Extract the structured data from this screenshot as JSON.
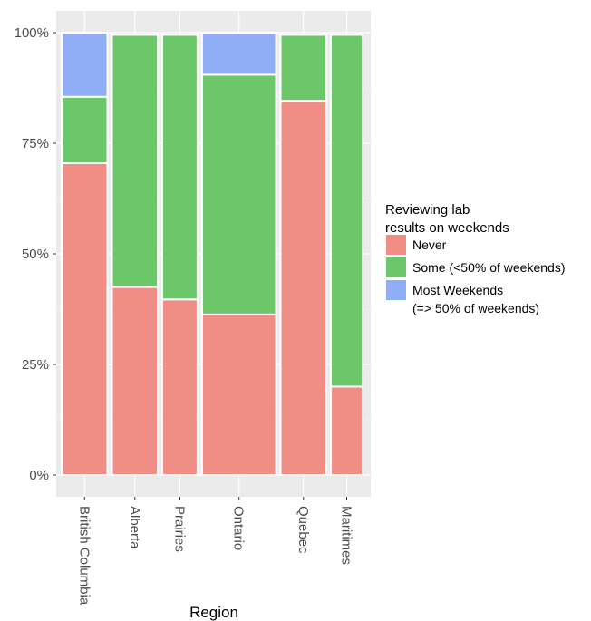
{
  "chart_data": {
    "type": "bar",
    "subtype": "mosaic-stacked-100",
    "xlabel": "Region",
    "ylabel": "",
    "ylim": [
      0,
      100
    ],
    "y_ticks": [
      "0%",
      "25%",
      "50%",
      "75%",
      "100%"
    ],
    "y_tick_values": [
      0,
      25,
      50,
      75,
      100
    ],
    "categories": [
      "British Columbia",
      "Alberta",
      "Prairies",
      "Ontario",
      "Quebec",
      "Maritimes"
    ],
    "category_widths": [
      0.13,
      0.13,
      0.1,
      0.21,
      0.13,
      0.09
    ],
    "series": [
      {
        "name": "Never",
        "color": "#F08D85",
        "values": [
          70.5,
          42.5,
          39.7,
          36.3,
          84.6,
          20.0
        ]
      },
      {
        "name": "Some (<50% of weekends)",
        "color": "#6CC76A",
        "values": [
          15.0,
          57.0,
          59.8,
          54.2,
          14.9,
          79.5
        ]
      },
      {
        "name": "Most Weekends (=> 50% of weekends)",
        "color": "#8FAEF5",
        "values": [
          14.5,
          0,
          0,
          9.5,
          0,
          0
        ]
      }
    ],
    "legend": {
      "title_lines": [
        "Reviewing lab",
        "results on weekends"
      ],
      "entries": [
        {
          "lines": [
            "Never"
          ],
          "color": "#F08D85"
        },
        {
          "lines": [
            "Some (<50% of weekends)"
          ],
          "color": "#6CC76A"
        },
        {
          "lines": [
            "Most Weekends",
            "(=> 50% of weekends)"
          ],
          "color": "#8FAEF5"
        }
      ],
      "position": "right"
    },
    "grid": true,
    "panel_background": "#EBEBEB"
  }
}
